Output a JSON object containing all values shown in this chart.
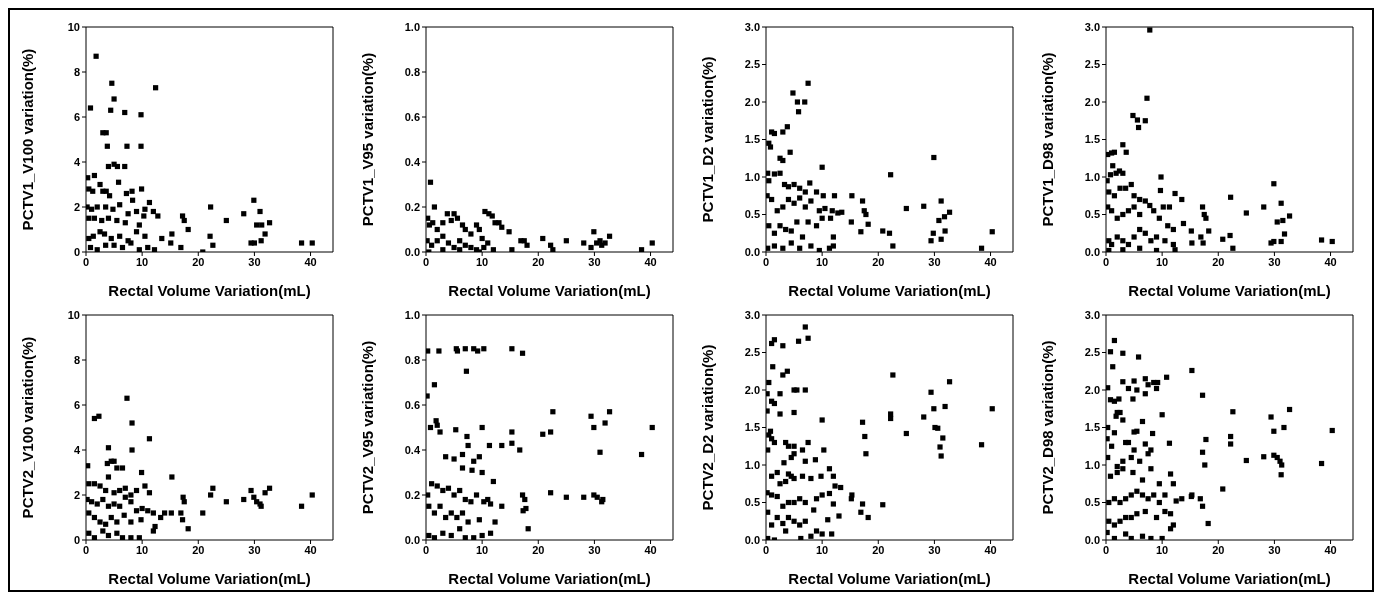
{
  "chart_data": [
    {
      "type": "scatter",
      "xlabel": "Rectal Volume Variation(mL)",
      "ylabel": "PCTV1_V100 variation(%)",
      "color": "#000000",
      "marker": "square",
      "xlim": [
        0,
        44
      ],
      "xticks": [
        0,
        10,
        20,
        30,
        40
      ],
      "ylim": [
        0,
        10
      ],
      "yticks": [
        0,
        2,
        4,
        6,
        8,
        10
      ],
      "x": [
        0.8,
        1.8,
        3,
        3.6,
        3.8,
        4.4,
        4.6,
        5,
        6.9,
        7.3,
        9.8,
        9.8,
        12.4,
        4,
        5,
        5.6,
        6.9,
        0.3,
        1.5,
        0.5,
        1.2,
        2.5,
        3,
        3.6,
        4.2,
        5.8,
        7.2,
        8.2,
        9.9,
        0.2,
        1,
        2,
        3.5,
        4.8,
        6,
        7.5,
        8.3,
        9,
        10.5,
        11.3,
        12,
        12.8,
        0.5,
        1.5,
        2.8,
        4,
        5.5,
        7,
        9.5,
        10.3,
        0.5,
        1.3,
        2.5,
        3.3,
        4.5,
        6,
        7.5,
        9,
        10.5,
        0.8,
        2,
        3.5,
        5,
        6.5,
        8,
        9.5,
        11,
        12.2,
        13.5,
        15.3,
        15.1,
        16.9,
        17.2,
        17.5,
        18.2,
        20.8,
        22.2,
        22.1,
        22.6,
        25,
        28.1,
        29.4,
        30,
        29.9,
        31,
        30.4,
        31.3,
        31.9,
        31.2,
        32.7,
        38.4,
        40.3
      ],
      "values": [
        6.4,
        8.7,
        5.3,
        5.3,
        4.7,
        6.3,
        7.5,
        6.8,
        6.2,
        4.7,
        6.1,
        4.7,
        7.3,
        3.8,
        3.9,
        3.8,
        3.8,
        3.3,
        3.4,
        2.8,
        2.7,
        3,
        2.7,
        2.7,
        2.5,
        3.1,
        2.6,
        2.7,
        2.8,
        2,
        1.9,
        2,
        2,
        1.9,
        2.1,
        1.7,
        2.3,
        1.8,
        1.9,
        2.2,
        1.8,
        1.6,
        1.5,
        1.5,
        1.4,
        1.5,
        1.4,
        1.3,
        1.2,
        1.6,
        0.6,
        0.7,
        0.9,
        0.8,
        0.6,
        0.7,
        0.5,
        0.9,
        0.7,
        0.2,
        0.1,
        0.3,
        0.3,
        0.2,
        0.4,
        0.1,
        0.2,
        0.1,
        0.6,
        0.8,
        0.4,
        0.2,
        1.6,
        1.4,
        1,
        0,
        2,
        0.7,
        0.3,
        1.4,
        1.7,
        0.4,
        0.4,
        2.3,
        1.8,
        1.2,
        1.2,
        0.8,
        0.5,
        1.3,
        0.4,
        0.4
      ]
    },
    {
      "type": "scatter",
      "xlabel": "Rectal Volume Variation(mL)",
      "ylabel": "PCTV1_V95 variation(%)",
      "color": "#000000",
      "marker": "square",
      "xlim": [
        0,
        44
      ],
      "xticks": [
        0,
        10,
        20,
        30,
        40
      ],
      "ylim": [
        0,
        1
      ],
      "yticks": [
        {
          "value": 0,
          "label": "0.0"
        },
        {
          "value": 0.2,
          "label": "0.2"
        },
        {
          "value": 0.4,
          "label": "0.4"
        },
        {
          "value": 0.6,
          "label": "0.6"
        },
        {
          "value": 0.8,
          "label": "0.8"
        },
        {
          "value": 1,
          "label": "1.0"
        }
      ],
      "x": [
        0.8,
        1.5,
        0.3,
        0.6,
        1.2,
        2,
        3,
        3.8,
        4.5,
        5,
        5.6,
        6.5,
        7,
        8,
        9,
        9.5,
        10.5,
        11.2,
        11.8,
        12.3,
        13,
        13.5,
        14.8,
        0.2,
        1,
        2,
        3,
        4,
        5,
        6,
        7,
        8,
        9,
        10,
        10.3,
        11,
        12,
        0.5,
        3,
        6,
        9.5,
        15.3,
        16.9,
        17.5,
        18,
        20.8,
        22.2,
        22.6,
        25,
        28.1,
        29.4,
        29.9,
        30.4,
        31,
        31.3,
        31.9,
        32.7,
        38.4,
        40.3
      ],
      "values": [
        0.31,
        0.2,
        0.15,
        0.12,
        0.13,
        0.1,
        0.13,
        0.17,
        0.14,
        0.17,
        0.15,
        0.12,
        0.1,
        0.08,
        0.12,
        0.1,
        0.18,
        0.17,
        0.16,
        0.13,
        0.13,
        0.11,
        0.09,
        0.05,
        0.03,
        0.05,
        0.07,
        0.04,
        0.02,
        0.05,
        0.03,
        0.02,
        0.01,
        0.06,
        0.02,
        0.04,
        0.01,
        0,
        0.01,
        0.01,
        0,
        0.01,
        0.05,
        0.05,
        0.03,
        0.06,
        0.03,
        0.01,
        0.05,
        0.04,
        0.02,
        0.09,
        0.04,
        0.05,
        0.03,
        0.04,
        0.07,
        0.01,
        0.04
      ]
    },
    {
      "type": "scatter",
      "xlabel": "Rectal Volume Variation(mL)",
      "ylabel": "PCTV1_D2 variation(%)",
      "color": "#000000",
      "marker": "square",
      "xlim": [
        0,
        44
      ],
      "xticks": [
        0,
        10,
        20,
        30,
        40
      ],
      "ylim": [
        0,
        3
      ],
      "yticks": [
        {
          "value": 0,
          "label": "0.0"
        },
        {
          "value": 0.5,
          "label": "0.5"
        },
        {
          "value": 1,
          "label": "1.0"
        },
        {
          "value": 1.5,
          "label": "1.5"
        },
        {
          "value": 2,
          "label": "2.0"
        },
        {
          "value": 2.5,
          "label": "2.5"
        },
        {
          "value": 3,
          "label": "3.0"
        }
      ],
      "x": [
        0.3,
        0.5,
        0.8,
        1,
        1.5,
        2.5,
        3,
        3,
        3.8,
        4.3,
        4.8,
        5.6,
        5.8,
        6.9,
        7.5,
        10,
        0.5,
        1.5,
        2.5,
        3.3,
        4,
        5,
        6,
        7,
        7.8,
        9,
        10.2,
        12.2,
        0.2,
        1,
        2,
        3,
        4,
        5,
        6,
        7,
        8,
        9.5,
        10.5,
        11.8,
        12.8,
        13.5,
        15.3,
        15.2,
        0.5,
        1.5,
        2.5,
        3.5,
        4.5,
        5.5,
        6.5,
        7.5,
        9,
        10,
        11.5,
        12,
        0.3,
        1.5,
        3,
        4.5,
        6,
        8,
        9.5,
        11.3,
        12,
        16.9,
        17.2,
        17.5,
        17.8,
        18.2,
        20.8,
        22.2,
        22,
        22.6,
        25,
        28.1,
        29.4,
        29.9,
        29.8,
        30.8,
        31.2,
        31.2,
        31.8,
        31.9,
        32.7,
        38.4,
        40.3
      ],
      "values": [
        1.05,
        1.45,
        1.4,
        1.6,
        1.58,
        1.25,
        1.22,
        1.6,
        1.67,
        1.33,
        2.12,
        2,
        1.87,
        2,
        2.25,
        1.13,
        0.95,
        1.04,
        1.05,
        0.9,
        0.87,
        0.9,
        0.85,
        0.8,
        0.92,
        0.8,
        0.75,
        0.75,
        0.75,
        0.7,
        0.55,
        0.6,
        0.7,
        0.65,
        0.72,
        0.6,
        0.68,
        0.55,
        0.58,
        0.55,
        0.52,
        0.53,
        0.75,
        0.4,
        0.35,
        0.25,
        0.35,
        0.3,
        0.28,
        0.4,
        0.2,
        0.4,
        0.35,
        0.45,
        0.45,
        0.2,
        0.05,
        0.08,
        0.05,
        0.12,
        0.05,
        0.08,
        0.02,
        0.05,
        0.08,
        0.27,
        0.68,
        0.55,
        0.5,
        0.37,
        0.28,
        1.03,
        0.25,
        0.08,
        0.58,
        0.61,
        0.15,
        1.26,
        0.25,
        0.42,
        0.68,
        0.17,
        0.47,
        0.28,
        0.53,
        0.05,
        0.27
      ]
    },
    {
      "type": "scatter",
      "xlabel": "Rectal Volume Variation(mL)",
      "ylabel": "PCTV1_D98 variation(%)",
      "color": "#000000",
      "marker": "square",
      "xlim": [
        0,
        44
      ],
      "xticks": [
        0,
        10,
        20,
        30,
        40
      ],
      "ylim": [
        0,
        3
      ],
      "yticks": [
        {
          "value": 0,
          "label": "0.0"
        },
        {
          "value": 0.5,
          "label": "0.5"
        },
        {
          "value": 1,
          "label": "1.0"
        },
        {
          "value": 1.5,
          "label": "1.5"
        },
        {
          "value": 2,
          "label": "2.0"
        },
        {
          "value": 2.5,
          "label": "2.5"
        },
        {
          "value": 3,
          "label": "3.0"
        }
      ],
      "x": [
        7.8,
        7.3,
        4.8,
        5.6,
        7,
        5.8,
        0.3,
        1,
        1.5,
        3,
        3.6,
        0.2,
        0.8,
        1.2,
        1.8,
        2.4,
        3,
        0.5,
        1.5,
        2.5,
        3.5,
        4.5,
        5,
        6,
        7,
        7.8,
        9.8,
        9.7,
        10.2,
        11.3,
        12.3,
        13.5,
        0.3,
        1,
        2,
        3,
        4,
        5,
        6,
        8.5,
        9.5,
        11,
        12,
        0.5,
        1,
        2,
        3,
        4,
        5,
        6,
        7,
        8,
        9,
        10.5,
        12,
        0.5,
        3,
        6,
        9,
        12.3,
        13.8,
        15.2,
        15.3,
        16.9,
        17.2,
        17.5,
        17.8,
        17.3,
        18.3,
        20.8,
        22.2,
        22.1,
        22.6,
        25,
        28.1,
        29.4,
        29.9,
        29.9,
        30.5,
        31.2,
        31.2,
        31.5,
        31.8,
        32.7,
        38.4,
        40.3
      ],
      "values": [
        2.96,
        2.05,
        1.82,
        1.76,
        1.75,
        1.66,
        1.3,
        1.32,
        1.33,
        1.43,
        1.33,
        0.95,
        1.03,
        1.15,
        1.05,
        1.08,
        1.05,
        0.8,
        0.75,
        0.85,
        0.85,
        0.9,
        0.75,
        0.7,
        0.68,
        0.62,
        1,
        0.82,
        0.6,
        0.6,
        0.78,
        0.7,
        0.6,
        0.55,
        0.45,
        0.5,
        0.55,
        0.6,
        0.5,
        0.55,
        0.45,
        0.35,
        0.3,
        0.15,
        0.1,
        0.2,
        0.15,
        0.1,
        0.2,
        0.3,
        0.25,
        0.15,
        0.2,
        0.15,
        0.1,
        0.02,
        0.03,
        0.05,
        0.02,
        0.03,
        0.38,
        0.28,
        0.12,
        0.2,
        0.6,
        0.5,
        0.45,
        0.12,
        0.28,
        0.17,
        0.73,
        0.22,
        0.05,
        0.52,
        0.6,
        0.12,
        0.91,
        0.14,
        0.4,
        0.65,
        0.14,
        0.42,
        0.24,
        0.48,
        0.16,
        0.14
      ]
    },
    {
      "type": "scatter",
      "xlabel": "Rectal Volume Variation(mL)",
      "ylabel": "PCTV2_V100 variation(%)",
      "color": "#000000",
      "marker": "square",
      "xlim": [
        0,
        44
      ],
      "xticks": [
        0,
        10,
        20,
        30,
        40
      ],
      "ylim": [
        0,
        10
      ],
      "yticks": [
        0,
        2,
        4,
        6,
        8,
        10
      ],
      "x": [
        7.3,
        1.5,
        2.3,
        8.2,
        11.3,
        4,
        8.2,
        0.3,
        3.8,
        4.5,
        5,
        5.5,
        6.5,
        9.9,
        0.5,
        1.5,
        2.5,
        3.5,
        4,
        5,
        6,
        7,
        8,
        9,
        10.5,
        11.3,
        0.2,
        1,
        2,
        3,
        4,
        5,
        6,
        7,
        8,
        9,
        10,
        11,
        12,
        13.3,
        0.5,
        1.5,
        2.5,
        3.5,
        4.5,
        5.5,
        6.8,
        8,
        9.8,
        12.3,
        0.5,
        1.5,
        3,
        4,
        5.5,
        6.5,
        8,
        9.5,
        12,
        14,
        15.3,
        15.2,
        16.9,
        17.3,
        17.5,
        17.2,
        18.2,
        20.8,
        22.2,
        22.6,
        25,
        28.1,
        29.4,
        29.9,
        30.4,
        31,
        31.2,
        31.9,
        32.7,
        38.4,
        40.3
      ],
      "values": [
        6.3,
        5.4,
        5.5,
        5.2,
        4.5,
        4.1,
        4,
        3.3,
        3.4,
        3.5,
        3.5,
        3.2,
        3.2,
        3,
        2.5,
        2.5,
        2.4,
        2.2,
        2.8,
        2.1,
        2.2,
        2.3,
        2,
        2.2,
        2.4,
        2.1,
        1.8,
        1.7,
        1.6,
        1.8,
        1.5,
        1.6,
        1.5,
        1.9,
        1.7,
        1.3,
        1.4,
        1.3,
        1.2,
        1,
        1.2,
        1,
        0.8,
        0.7,
        1,
        0.8,
        1.1,
        0.8,
        0.9,
        0.6,
        0.3,
        0.1,
        0.4,
        0.2,
        0.3,
        0.1,
        0.1,
        0.1,
        0.4,
        1.2,
        2.8,
        1.2,
        1.2,
        1.9,
        1.7,
        0.9,
        0.5,
        1.2,
        2,
        2.3,
        1.7,
        1.8,
        2.2,
        1.9,
        1.7,
        1.6,
        1.5,
        2.1,
        2.3,
        1.5,
        2
      ]
    },
    {
      "type": "scatter",
      "xlabel": "Rectal Volume Variation(mL)",
      "ylabel": "PCTV2_V95 variation(%)",
      "color": "#000000",
      "marker": "square",
      "xlim": [
        0,
        44
      ],
      "xticks": [
        0,
        10,
        20,
        30,
        40
      ],
      "ylim": [
        0,
        1
      ],
      "yticks": [
        {
          "value": 0,
          "label": "0.0"
        },
        {
          "value": 0.2,
          "label": "0.2"
        },
        {
          "value": 0.4,
          "label": "0.4"
        },
        {
          "value": 0.6,
          "label": "0.6"
        },
        {
          "value": 0.8,
          "label": "0.8"
        },
        {
          "value": 1,
          "label": "1.0"
        }
      ],
      "x": [
        0.2,
        0.3,
        2.3,
        1.5,
        5.4,
        5.6,
        7,
        8.5,
        9.2,
        10.3,
        15.3,
        17.2,
        7.2,
        1.8,
        2,
        0.8,
        2.5,
        5.3,
        7.3,
        10,
        15.3,
        15.3,
        16.7,
        3.5,
        5,
        6.5,
        7.5,
        8.5,
        9.5,
        11.3,
        13.5,
        6.5,
        8.2,
        10,
        12,
        0.3,
        1,
        2,
        3,
        4,
        5,
        6,
        7,
        8,
        9,
        10.3,
        11,
        0.5,
        1.5,
        2.5,
        3.5,
        4.5,
        5.5,
        6.5,
        7.5,
        9.5,
        11.5,
        12.3,
        13.5,
        0.5,
        1.5,
        3,
        4.5,
        6,
        7,
        8.5,
        10,
        11.5,
        17.2,
        17.6,
        17.3,
        17.8,
        18.2,
        20.8,
        22.2,
        22.6,
        22.2,
        25,
        28.1,
        29.4,
        29.9,
        29.9,
        30.5,
        31,
        31.3,
        31.5,
        31.9,
        32.7,
        38.4,
        40.3
      ],
      "values": [
        0.64,
        0.84,
        0.84,
        0.69,
        0.85,
        0.84,
        0.85,
        0.85,
        0.84,
        0.85,
        0.85,
        0.83,
        0.75,
        0.53,
        0.51,
        0.5,
        0.48,
        0.49,
        0.46,
        0.5,
        0.48,
        0.43,
        0.4,
        0.37,
        0.36,
        0.38,
        0.42,
        0.35,
        0.37,
        0.42,
        0.42,
        0.32,
        0.31,
        0.3,
        0.26,
        0.2,
        0.25,
        0.24,
        0.22,
        0.23,
        0.2,
        0.22,
        0.18,
        0.17,
        0.2,
        0.17,
        0.18,
        0.15,
        0.12,
        0.15,
        0.1,
        0.12,
        0.1,
        0.12,
        0.08,
        0.09,
        0.16,
        0.08,
        0.15,
        0.02,
        0.01,
        0.03,
        0.02,
        0.05,
        0.01,
        0.01,
        0.02,
        0.03,
        0.2,
        0.18,
        0.13,
        0.14,
        0.05,
        0.47,
        0.48,
        0.57,
        0.21,
        0.19,
        0.19,
        0.55,
        0.5,
        0.2,
        0.19,
        0.39,
        0.17,
        0.18,
        0.52,
        0.57,
        0.38,
        0.5
      ]
    },
    {
      "type": "scatter",
      "xlabel": "Rectal Volume Variation(mL)",
      "ylabel": "PCTV2_D2 variation(%)",
      "color": "#000000",
      "marker": "square",
      "xlim": [
        0,
        44
      ],
      "xticks": [
        0,
        10,
        20,
        30,
        40
      ],
      "ylim": [
        0,
        3
      ],
      "yticks": [
        {
          "value": 0,
          "label": "0.0"
        },
        {
          "value": 0.5,
          "label": "0.5"
        },
        {
          "value": 1,
          "label": "1.0"
        },
        {
          "value": 1.5,
          "label": "1.5"
        },
        {
          "value": 2,
          "label": "2.0"
        },
        {
          "value": 2.5,
          "label": "2.5"
        },
        {
          "value": 3,
          "label": "3.0"
        }
      ],
      "x": [
        7,
        7.5,
        1,
        1.5,
        3,
        5.8,
        1.2,
        3,
        3.8,
        0.5,
        2.5,
        5,
        5.5,
        7,
        0.2,
        1,
        1.5,
        2.5,
        5,
        10,
        0.2,
        0.5,
        0.8,
        1,
        1.5,
        3.5,
        4,
        5,
        6.5,
        7.5,
        10.3,
        0.3,
        4.5,
        5,
        7,
        8.8,
        11.3,
        2,
        3.2,
        4,
        4.5,
        5,
        6.5,
        8,
        9.8,
        12,
        1,
        2.5,
        3.5,
        12.3,
        13.3,
        0.2,
        1,
        2,
        3,
        4,
        5,
        6,
        7,
        8.5,
        9,
        10,
        11.3,
        12,
        0.3,
        1,
        2,
        3,
        4,
        5,
        6,
        7,
        8,
        9,
        10,
        11,
        11.7,
        13,
        0.3,
        1.5,
        3.5,
        6.2,
        15.2,
        15.3,
        16.9,
        17.2,
        17.2,
        17.6,
        17.8,
        18.2,
        20.8,
        22.2,
        22.2,
        22.6,
        25,
        28.1,
        29.4,
        29.9,
        30.1,
        30.6,
        31,
        31.2,
        31.5,
        31.9,
        32.7,
        38.4,
        40.3
      ],
      "values": [
        2.84,
        2.69,
        2.62,
        2.67,
        2.59,
        2.65,
        2.31,
        2.2,
        2.25,
        2.1,
        1.95,
        2,
        2,
        2,
        1.95,
        1.85,
        1.82,
        1.68,
        1.7,
        1.6,
        1.72,
        1.4,
        1.45,
        1.35,
        1.3,
        1.3,
        1.25,
        1.25,
        1.2,
        1.3,
        1.2,
        1.2,
        1.1,
        1.15,
        1.05,
        1.07,
        0.95,
        0.9,
        1.03,
        0.88,
        0.85,
        0.82,
        0.85,
        0.82,
        0.85,
        0.85,
        0.85,
        0.75,
        0.78,
        0.72,
        0.7,
        0.63,
        0.6,
        0.58,
        0.45,
        0.5,
        0.5,
        0.55,
        0.5,
        0.4,
        0.55,
        0.6,
        0.62,
        0.48,
        0.37,
        0.2,
        0.3,
        0.22,
        0.3,
        0.25,
        0.2,
        0.25,
        0.05,
        0.12,
        0.08,
        0.27,
        0.08,
        0.32,
        0.02,
        0,
        0.12,
        0.02,
        0.55,
        0.6,
        0.37,
        0.48,
        1.57,
        1.38,
        1.15,
        0.3,
        0.47,
        1.68,
        1.62,
        2.2,
        1.42,
        1.64,
        1.97,
        1.75,
        1.5,
        1.49,
        1.24,
        1.12,
        1.36,
        1.78,
        2.11,
        1.27,
        1.75
      ]
    },
    {
      "type": "scatter",
      "xlabel": "Rectal Volume Variation(mL)",
      "ylabel": "PCTV2_D98 variation(%)",
      "color": "#000000",
      "marker": "square",
      "xlim": [
        0,
        44
      ],
      "xticks": [
        0,
        10,
        20,
        30,
        40
      ],
      "ylim": [
        0,
        3
      ],
      "yticks": [
        {
          "value": 0,
          "label": "0.0"
        },
        {
          "value": 0.5,
          "label": "0.5"
        },
        {
          "value": 1,
          "label": "1.0"
        },
        {
          "value": 1.5,
          "label": "1.5"
        },
        {
          "value": 2,
          "label": "2.0"
        },
        {
          "value": 2.5,
          "label": "2.5"
        },
        {
          "value": 3,
          "label": "3.0"
        }
      ],
      "x": [
        1.5,
        0.8,
        3,
        5.8,
        1.2,
        0.3,
        3,
        4,
        5,
        5.5,
        7,
        7.5,
        8.5,
        9.2,
        10.8,
        15.3,
        4.8,
        7,
        9,
        0.8,
        1.5,
        2.3,
        2,
        2.5,
        1.8,
        3,
        6.5,
        10,
        17.2,
        0.3,
        1.5,
        5,
        5.5,
        8.3,
        0.2,
        1,
        3.5,
        4,
        5,
        7,
        8,
        11.3,
        0.3,
        2,
        3,
        4.5,
        6,
        7.5,
        0.8,
        2,
        3,
        4.8,
        6.5,
        8,
        9.5,
        11.5,
        0.5,
        1.5,
        2.5,
        3.5,
        4.5,
        5.5,
        6.5,
        7.5,
        8.5,
        9.5,
        10.5,
        12,
        12.5,
        13.5,
        0.5,
        1.5,
        2.5,
        3.5,
        4.5,
        5.5,
        7,
        9,
        10.5,
        11.5,
        0.2,
        1.5,
        3.5,
        4.5,
        6.5,
        8,
        10,
        11.5,
        12,
        15.2,
        15.3,
        16.8,
        17.2,
        17.2,
        17.6,
        17.8,
        18.2,
        20.8,
        22.2,
        22.2,
        22.6,
        25,
        28.1,
        29.4,
        29.9,
        29.9,
        30.5,
        31,
        31.2,
        31.3,
        31.7,
        32.7,
        38.4,
        40.3
      ],
      "values": [
        2.66,
        2.51,
        2.49,
        2.44,
        2.31,
        2.03,
        2.11,
        2.02,
        2.12,
        2,
        2.15,
        2.07,
        2.1,
        2.1,
        2.17,
        2.26,
        1.88,
        1.95,
        2.02,
        1.87,
        1.85,
        1.88,
        1.7,
        1.7,
        1.65,
        1.6,
        1.58,
        1.67,
        1.93,
        1.5,
        1.43,
        1.44,
        1.45,
        1.42,
        1.35,
        1.25,
        1.3,
        1.3,
        1.2,
        1.28,
        1.2,
        1.29,
        1.1,
        0.98,
        1.05,
        1.1,
        1.05,
        1.15,
        0.85,
        0.9,
        0.95,
        0.9,
        0.8,
        0.95,
        0.75,
        0.88,
        0.5,
        0.55,
        0.5,
        0.55,
        0.6,
        0.65,
        0.6,
        0.55,
        0.6,
        0.5,
        0.6,
        0.75,
        0.52,
        0.55,
        0.25,
        0.2,
        0.25,
        0.3,
        0.3,
        0.35,
        0.38,
        0.3,
        0.38,
        0.35,
        0.1,
        0.02,
        0.08,
        0.02,
        0.05,
        0.02,
        0.02,
        0.15,
        0.2,
        0.58,
        0.6,
        0.55,
        0.45,
        1.17,
        1,
        1.34,
        0.22,
        0.68,
        1.28,
        1.38,
        1.71,
        1.06,
        1.11,
        1.64,
        1.45,
        1.13,
        1.1,
        1.05,
        0.87,
        1,
        1.5,
        1.74,
        1.02,
        1.46
      ]
    }
  ]
}
